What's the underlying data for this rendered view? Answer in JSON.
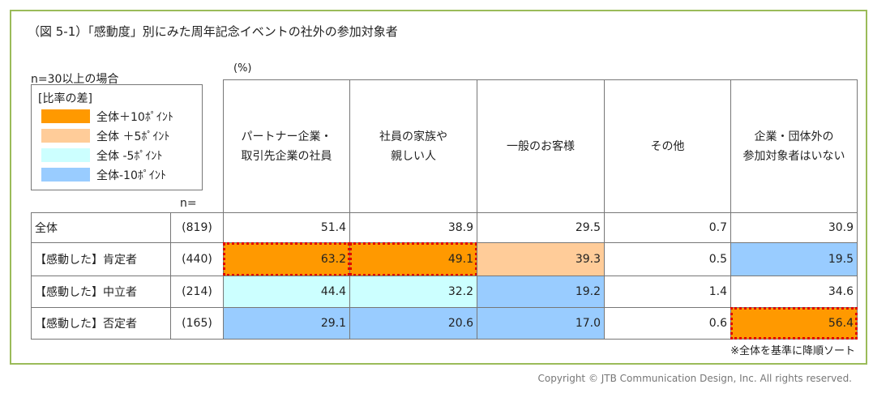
{
  "header": {
    "title": "（図 5-1）「感動度」別にみた周年記念イベントの社外の参加対象者",
    "condition": "n=30以上の場合",
    "unit": "(%)"
  },
  "legend": {
    "title": "[比率の差]",
    "items": [
      {
        "label": "全体＋10ﾎﾟｲﾝﾄ",
        "color": "#ff9900"
      },
      {
        "label": "全体 ＋5ﾎﾟｲﾝﾄ",
        "color": "#ffcc99"
      },
      {
        "label": "全体 -5ﾎﾟｲﾝﾄ",
        "color": "#ccffff"
      },
      {
        "label": "全体-10ﾎﾟｲﾝﾄ",
        "color": "#99ccff"
      }
    ]
  },
  "table": {
    "n_label": "n=",
    "columns": [
      "パートナー企業・\n取引先企業の社員",
      "社員の家族や\n親しい人",
      "一般のお客様",
      "その他",
      "企業・団体外の\n参加対象者はいない"
    ],
    "rows": [
      {
        "label": "全体",
        "n": "(819)",
        "cells": [
          "51.4",
          "38.9",
          "29.5",
          "0.7",
          "30.9"
        ],
        "colors": [
          null,
          null,
          null,
          null,
          null
        ],
        "outlined": [
          false,
          false,
          false,
          false,
          false
        ]
      },
      {
        "label": "【感動した】肯定者",
        "n": "(440)",
        "cells": [
          "63.2",
          "49.1",
          "39.3",
          "0.5",
          "19.5"
        ],
        "colors": [
          "#ff9900",
          "#ff9900",
          "#ffcc99",
          null,
          "#99ccff"
        ],
        "outlined": [
          true,
          true,
          false,
          false,
          false
        ]
      },
      {
        "label": "【感動した】中立者",
        "n": "(214)",
        "cells": [
          "44.4",
          "32.2",
          "19.2",
          "1.4",
          "34.6"
        ],
        "colors": [
          "#ccffff",
          "#ccffff",
          "#99ccff",
          null,
          null
        ],
        "outlined": [
          false,
          false,
          false,
          false,
          false
        ]
      },
      {
        "label": "【感動した】否定者",
        "n": "(165)",
        "cells": [
          "29.1",
          "20.6",
          "17.0",
          "0.6",
          "56.4"
        ],
        "colors": [
          "#99ccff",
          "#99ccff",
          "#99ccff",
          null,
          "#ff9900"
        ],
        "outlined": [
          false,
          false,
          false,
          false,
          true
        ]
      }
    ]
  },
  "footer": {
    "note": "※全体を基準に降順ソート",
    "copyright": "Copyright © JTB Communication Design, Inc. All rights reserved."
  }
}
